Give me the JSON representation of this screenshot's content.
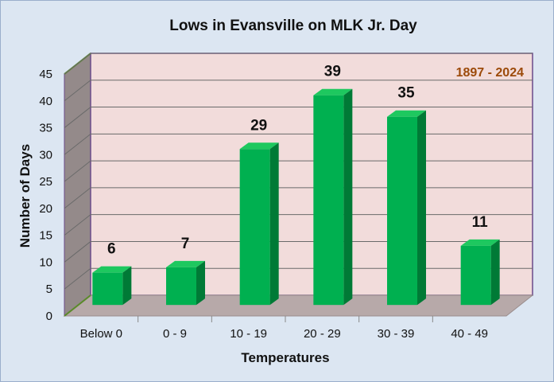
{
  "chart_data": {
    "type": "bar",
    "title": "Lows in Evansville on MLK Jr. Day",
    "annotation": "1897 - 2024",
    "xlabel": "Temperatures",
    "ylabel": "Number of Days",
    "categories": [
      "Below 0",
      "0 - 9",
      "10 - 19",
      "20 - 29",
      "30 - 39",
      "40 - 49"
    ],
    "values": [
      6,
      7,
      29,
      39,
      35,
      11
    ],
    "ylim": [
      0,
      45
    ],
    "yticks": [
      0,
      5,
      10,
      15,
      20,
      25,
      30,
      35,
      40,
      45
    ],
    "grid": true,
    "legend": "none",
    "colors": {
      "bar_front": "#00b050",
      "bar_side": "#007a36",
      "bar_top": "#1ec85f",
      "back_wall": "#f2dcdb",
      "side_wall": "#948a8a",
      "floor": "#b7a9a9",
      "wall_border": "#6a4a8a",
      "annotation": "#9c4a0a",
      "background": "#dce6f2"
    }
  }
}
